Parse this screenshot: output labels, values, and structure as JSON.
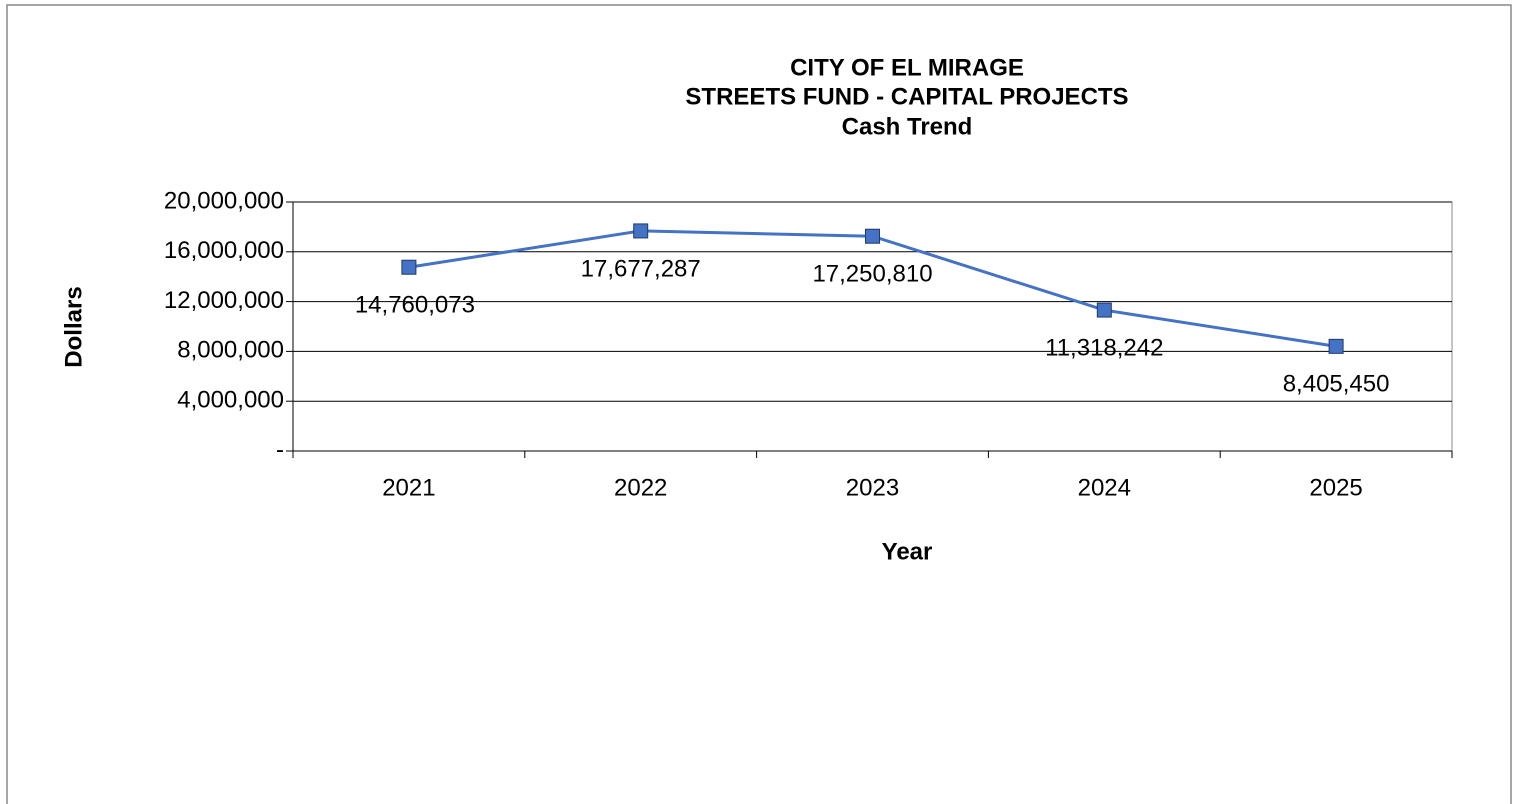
{
  "chart_data": {
    "type": "line",
    "title": [
      "CITY OF EL MIRAGE",
      "STREETS FUND - CAPITAL PROJECTS",
      "Cash Trend"
    ],
    "x_label": "Year",
    "y_label": "Dollars",
    "categories": [
      "2021",
      "2022",
      "2023",
      "2024",
      "2025"
    ],
    "series": [
      {
        "name": "Cash",
        "color": "#4472c4",
        "values": [
          14760073,
          17677287,
          17250810,
          11318242,
          8405450
        ],
        "value_labels": [
          "14,760,073",
          "17,677,287",
          "17,250,810",
          "11,318,242",
          "8,405,450"
        ]
      }
    ],
    "ylim": [
      0,
      20000000
    ],
    "yticks": [
      {
        "value": 0,
        "label": "-"
      },
      {
        "value": 4000000,
        "label": "4,000,000"
      },
      {
        "value": 8000000,
        "label": "8,000,000"
      },
      {
        "value": 12000000,
        "label": "12,000,000"
      },
      {
        "value": 16000000,
        "label": "16,000,000"
      },
      {
        "value": 20000000,
        "label": "20,000,000"
      }
    ],
    "grid": true
  }
}
